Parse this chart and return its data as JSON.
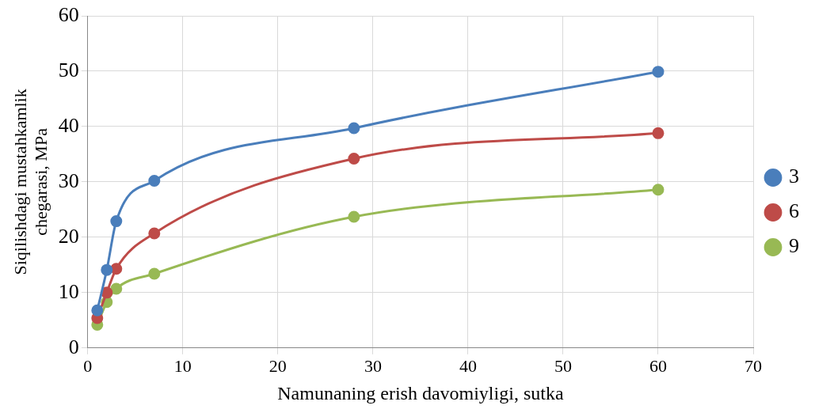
{
  "chart_data": {
    "type": "line",
    "xlabel": "Namunaning erish davomiyligi, sutka",
    "ylabel": "Siqilishdagi mustahkamlik chegarasi, MPa",
    "x": [
      1,
      2,
      3,
      7,
      28,
      60
    ],
    "series": [
      {
        "name": "3",
        "color": "#4a7ebb",
        "values": [
          6.8,
          14.1,
          22.9,
          30.2,
          39.7,
          49.9
        ]
      },
      {
        "name": "6",
        "color": "#be4b48",
        "values": [
          5.4,
          10.0,
          14.3,
          20.7,
          34.2,
          38.8
        ]
      },
      {
        "name": "9",
        "color": "#98b954",
        "values": [
          4.2,
          8.3,
          10.7,
          13.4,
          23.7,
          28.6
        ]
      }
    ],
    "xlim": [
      0,
      70
    ],
    "xticks": [
      0,
      10,
      20,
      30,
      40,
      50,
      60,
      70
    ],
    "ylim": [
      0,
      60
    ],
    "yticks": [
      0,
      10,
      20,
      30,
      40,
      50,
      60
    ],
    "grid": true,
    "legend": "right",
    "marker": "circle",
    "line_style": "solid"
  }
}
